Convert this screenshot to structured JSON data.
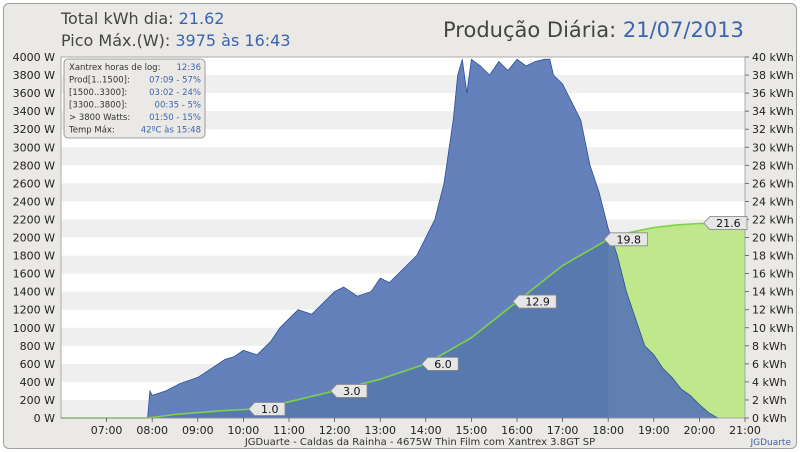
{
  "header": {
    "total_label": "Total kWh dia:",
    "total_value": "21.62",
    "peak_label": "Pico Máx.(W):",
    "peak_value": "3975 às 16:43",
    "title_label": "Produção Diária:",
    "title_date": "21/07/2013"
  },
  "info_box": [
    {
      "label": "Xantrex horas de log:",
      "value": "12:36"
    },
    {
      "label": "Prod[1..1500]:",
      "value": "07:09 - 57%"
    },
    {
      "label": "[1500..3300]:",
      "value": "03:02 - 24%"
    },
    {
      "label": "[3300..3800]:",
      "value": "00:35 - 5%"
    },
    {
      "label": "> 3800 Watts:",
      "value": "01:50 - 15%"
    },
    {
      "label": "Temp Máx:",
      "value": "42ºC às 15:48"
    }
  ],
  "footer": "JGDuarte  -  Caldas da Rainha  -  4675W Thin Film com Xantrex 3.8GT SP",
  "credit": "JGDuarte",
  "colors": {
    "power_fill": "#5876b5",
    "power_stroke": "#2e4f99",
    "energy_fill": "#5e9a4a",
    "energy_fill_light": "#bfe88c",
    "energy_line": "#7fd14a",
    "stripe": "#efefef"
  },
  "chart_data": {
    "type": "area",
    "x_unit": "hour of day",
    "x_range": [
      6,
      21
    ],
    "x_ticks": [
      "07:00",
      "08:00",
      "09:00",
      "10:00",
      "11:00",
      "12:00",
      "13:00",
      "14:00",
      "15:00",
      "16:00",
      "17:00",
      "18:00",
      "19:00",
      "20:00",
      "21:00"
    ],
    "y_left": {
      "min": 0,
      "max": 4000,
      "ticks": [
        "0 W",
        "200 W",
        "400 W",
        "600 W",
        "800 W",
        "1000 W",
        "1200 W",
        "1400 W",
        "1600 W",
        "1800 W",
        "2000 W",
        "2200 W",
        "2400 W",
        "2600 W",
        "2800 W",
        "3000 W",
        "3200 W",
        "3400 W",
        "3600 W",
        "3800 W",
        "4000 W"
      ]
    },
    "y_right": {
      "min": 0,
      "max": 40,
      "ticks": [
        "0 kWh",
        "2 kWh",
        "4 kWh",
        "6 kWh",
        "8 kWh",
        "10 kWh",
        "12 kWh",
        "14 kWh",
        "16 kWh",
        "18 kWh",
        "20 kWh",
        "22 kWh",
        "24 kWh",
        "26 kWh",
        "28 kWh",
        "30 kWh",
        "32 kWh",
        "34 kWh",
        "36 kWh",
        "38 kWh",
        "40 kWh"
      ]
    },
    "series": [
      {
        "axis": "left",
        "x": [
          6.0,
          7.0,
          7.9,
          7.95,
          8.0,
          8.3,
          8.6,
          9.0,
          9.3,
          9.6,
          9.8,
          10.0,
          10.3,
          10.6,
          10.8,
          11.0,
          11.2,
          11.5,
          11.8,
          12.0,
          12.2,
          12.5,
          12.8,
          13.0,
          13.2,
          13.5,
          13.8,
          14.0,
          14.2,
          14.4,
          14.6,
          14.7,
          14.8,
          14.9,
          15.0,
          15.2,
          15.4,
          15.6,
          15.8,
          16.0,
          16.2,
          16.4,
          16.6,
          16.72,
          16.8,
          17.0,
          17.2,
          17.4,
          17.6,
          17.8,
          18.0,
          18.2,
          18.4,
          18.6,
          18.8,
          19.0,
          19.2,
          19.4,
          19.6,
          19.8,
          20.0,
          20.2,
          20.4
        ],
        "y": [
          0,
          0,
          0,
          300,
          250,
          300,
          380,
          450,
          550,
          650,
          680,
          750,
          700,
          850,
          1000,
          1100,
          1200,
          1150,
          1300,
          1400,
          1450,
          1350,
          1400,
          1550,
          1500,
          1650,
          1800,
          2000,
          2200,
          2600,
          3300,
          3800,
          3975,
          3600,
          3975,
          3900,
          3800,
          3950,
          3850,
          3975,
          3900,
          3950,
          3975,
          3975,
          3800,
          3700,
          3500,
          3300,
          2800,
          2500,
          2100,
          1800,
          1400,
          1100,
          800,
          700,
          550,
          450,
          320,
          250,
          150,
          60,
          0
        ]
      },
      {
        "axis": "right",
        "x": [
          6.0,
          7.9,
          8.5,
          9.5,
          10.2,
          11.0,
          12.0,
          13.0,
          14.0,
          15.0,
          16.0,
          17.0,
          18.0,
          18.5,
          19.0,
          19.5,
          20.0,
          20.5,
          21.0
        ],
        "y": [
          0,
          0,
          0.4,
          0.8,
          1.0,
          1.8,
          3.0,
          4.3,
          6.0,
          8.9,
          12.9,
          16.9,
          19.8,
          20.6,
          21.1,
          21.4,
          21.55,
          21.6,
          21.6
        ]
      }
    ],
    "data_labels": [
      {
        "x": 10.2,
        "y": 1.0,
        "text": "1.0"
      },
      {
        "x": 12.0,
        "y": 3.0,
        "text": "3.0"
      },
      {
        "x": 14.0,
        "y": 6.0,
        "text": "6.0"
      },
      {
        "x": 16.0,
        "y": 12.9,
        "text": "12.9"
      },
      {
        "x": 18.0,
        "y": 19.8,
        "text": "19.8"
      },
      {
        "x": 21.0,
        "y": 21.6,
        "text": "21.6"
      }
    ]
  }
}
